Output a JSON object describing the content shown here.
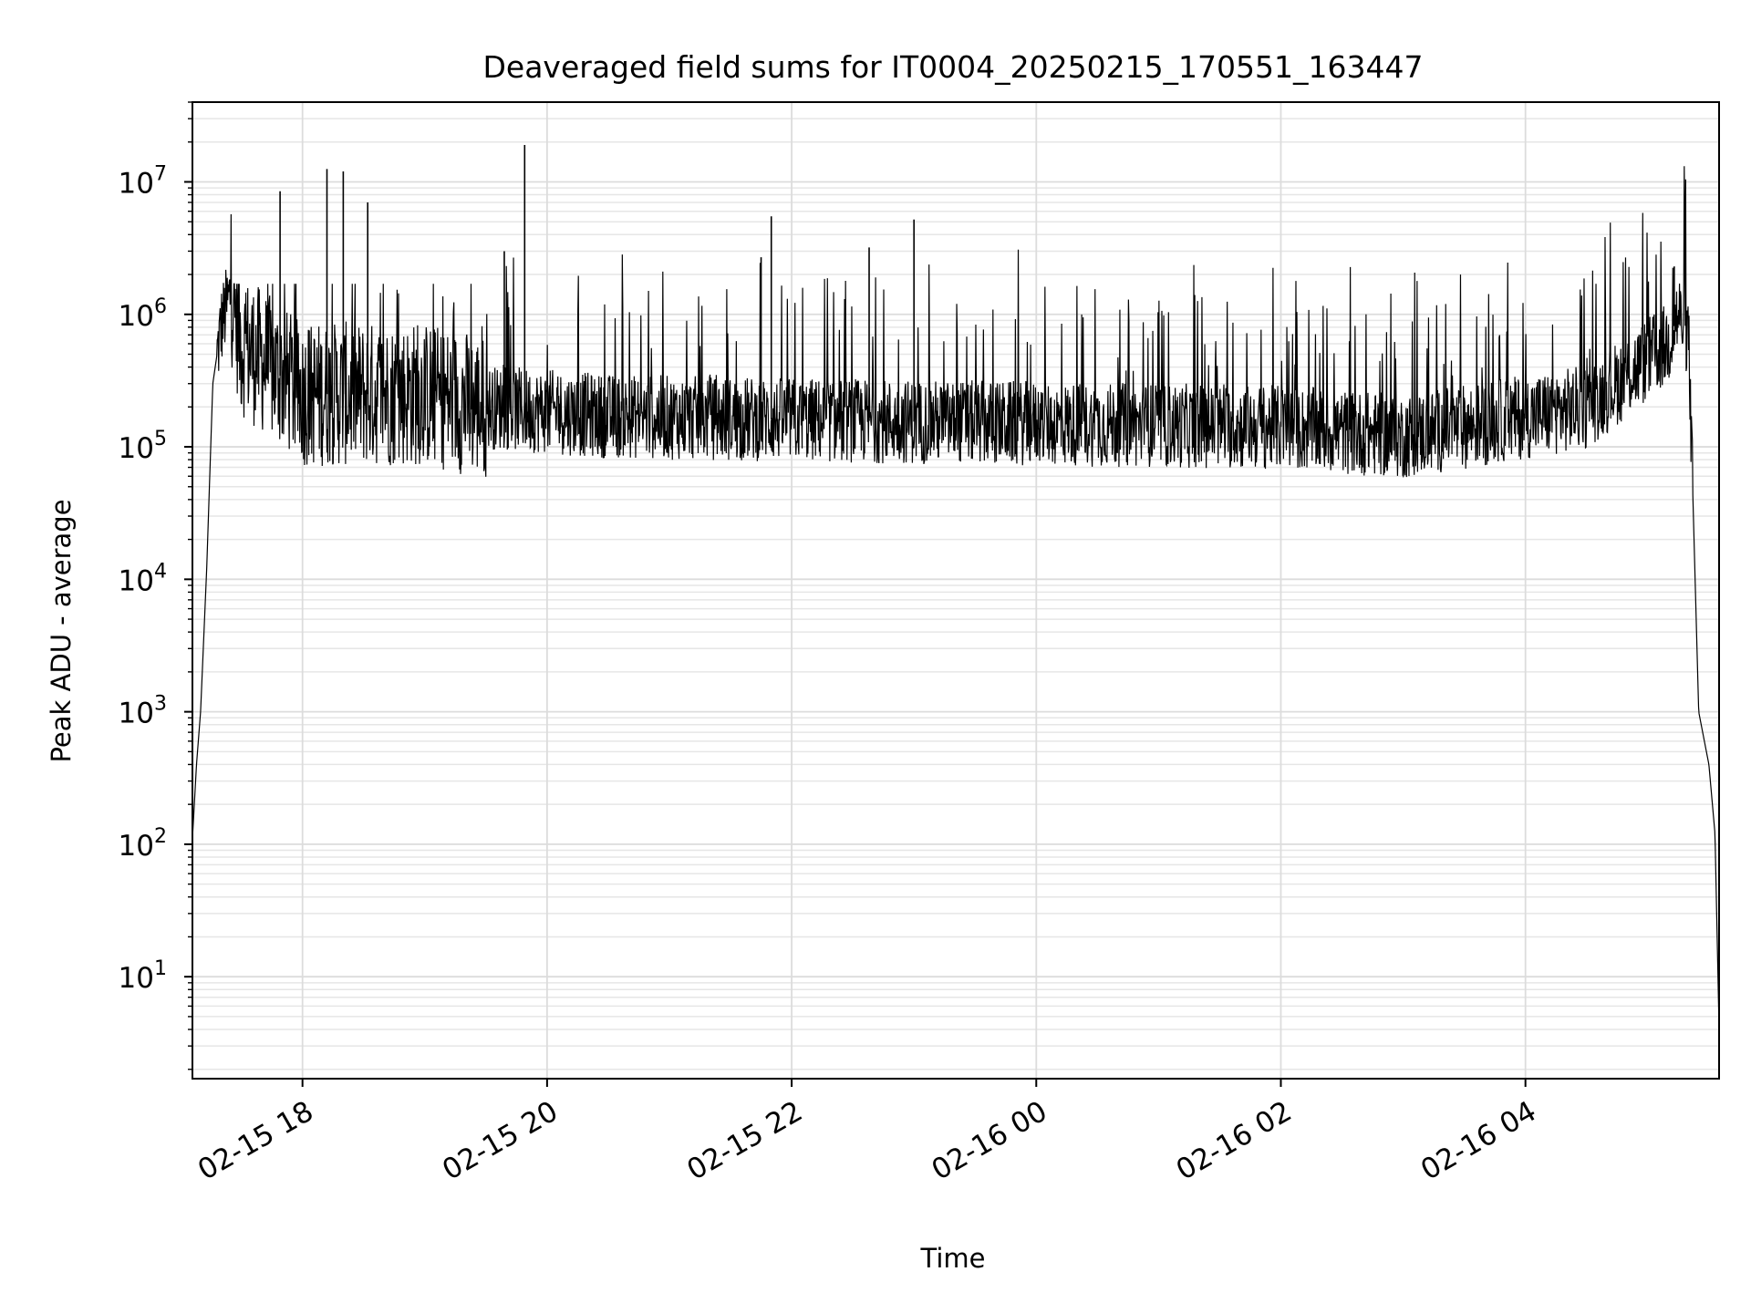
{
  "chart_data": {
    "type": "line",
    "title": "Deaveraged field sums for IT0004_20250215_170551_163447",
    "xlabel": "Time",
    "ylabel": "Peak ADU - average",
    "yscale": "log",
    "ylim": [
      1.7,
      40000000
    ],
    "xlim": [
      "2025-02-15 17:06",
      "2025-02-16 05:35"
    ],
    "grid": true,
    "line_color": "#000000",
    "x_ticks": [
      "02-15 18",
      "02-15 20",
      "02-15 22",
      "02-16 00",
      "02-16 02",
      "02-16 04"
    ],
    "x_tick_values": [
      "2025-02-15 18:00",
      "2025-02-15 20:00",
      "2025-02-15 22:00",
      "2025-02-16 00:00",
      "2025-02-16 02:00",
      "2025-02-16 04:00"
    ],
    "y_ticks": [
      {
        "base": "10",
        "exp": "1",
        "value": 10
      },
      {
        "base": "10",
        "exp": "2",
        "value": 100
      },
      {
        "base": "10",
        "exp": "3",
        "value": 1000
      },
      {
        "base": "10",
        "exp": "4",
        "value": 10000
      },
      {
        "base": "10",
        "exp": "5",
        "value": 100000
      },
      {
        "base": "10",
        "exp": "6",
        "value": 1000000
      },
      {
        "base": "10",
        "exp": "7",
        "value": 10000000
      }
    ],
    "series": [
      {
        "envelope_points": [
          {
            "x": "2025-02-15 17:06",
            "y": 110
          },
          {
            "x": "2025-02-15 17:08",
            "y": 400
          },
          {
            "x": "2025-02-15 17:10",
            "y": 1000
          },
          {
            "x": "2025-02-15 17:13",
            "y": 12000
          },
          {
            "x": "2025-02-15 17:16",
            "y": 300000
          },
          {
            "x": "2025-02-15 17:20",
            "y": 800000
          },
          {
            "x": "2025-02-15 17:25",
            "y": 1500000
          },
          {
            "x": "2025-02-15 17:30",
            "y": 600000
          },
          {
            "x": "2025-02-15 18:00",
            "y": 250000
          },
          {
            "x": "2025-02-15 19:00",
            "y": 250000
          },
          {
            "x": "2025-02-15 19:30",
            "y": 200000
          },
          {
            "x": "2025-02-15 20:30",
            "y": 170000
          },
          {
            "x": "2025-02-15 22:00",
            "y": 160000
          },
          {
            "x": "2025-02-16 00:00",
            "y": 150000
          },
          {
            "x": "2025-02-16 02:00",
            "y": 140000
          },
          {
            "x": "2025-02-16 03:00",
            "y": 120000
          },
          {
            "x": "2025-02-16 04:30",
            "y": 200000
          },
          {
            "x": "2025-02-16 05:10",
            "y": 600000
          },
          {
            "x": "2025-02-16 05:15",
            "y": 1000000
          },
          {
            "x": "2025-02-16 05:20",
            "y": 700000
          },
          {
            "x": "2025-02-16 05:25",
            "y": 1000
          },
          {
            "x": "2025-02-16 05:30",
            "y": 400
          },
          {
            "x": "2025-02-16 05:33",
            "y": 120
          },
          {
            "x": "2025-02-16 05:35",
            "y": 4
          }
        ],
        "spikes": [
          {
            "x": "2025-02-15 17:49",
            "y": 8500000
          },
          {
            "x": "2025-02-15 18:12",
            "y": 12500000
          },
          {
            "x": "2025-02-15 18:20",
            "y": 12000000
          },
          {
            "x": "2025-02-15 18:32",
            "y": 7000000
          },
          {
            "x": "2025-02-15 19:39",
            "y": 3000000
          },
          {
            "x": "2025-02-15 19:49",
            "y": 19000000
          },
          {
            "x": "2025-02-15 21:45",
            "y": 2700000
          },
          {
            "x": "2025-02-15 21:50",
            "y": 5500000
          },
          {
            "x": "2025-02-15 22:38",
            "y": 3200000
          },
          {
            "x": "2025-02-15 23:00",
            "y": 5200000
          },
          {
            "x": "2025-02-16 05:13",
            "y": 2300000
          }
        ]
      }
    ]
  }
}
